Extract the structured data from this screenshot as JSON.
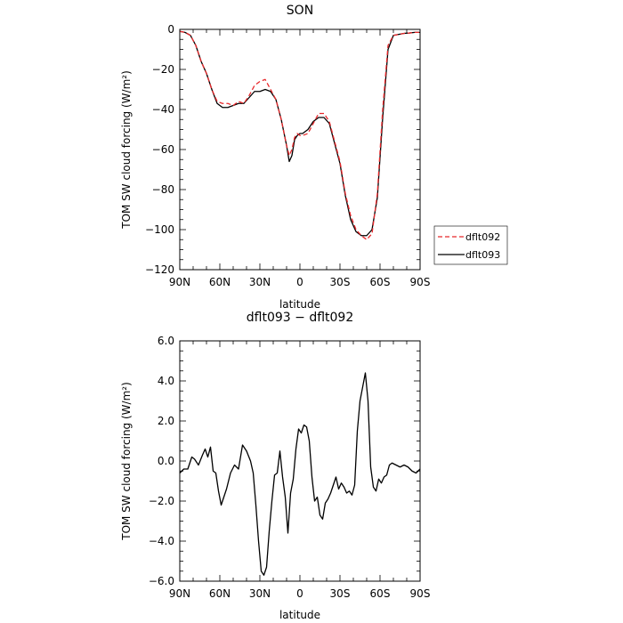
{
  "chart_data": [
    {
      "type": "line",
      "title": "SON",
      "xlabel": "latitude",
      "ylabel": "TOM SW cloud forcing (W/m²)",
      "xticks": [
        "90N",
        "60N",
        "30N",
        "0",
        "30S",
        "60S",
        "90S"
      ],
      "xlim": [
        -90,
        90
      ],
      "ylim": [
        -120,
        0
      ],
      "yticks": [
        "0",
        "−20",
        "−40",
        "−60",
        "−80",
        "−100",
        "−120"
      ],
      "ytick_values": [
        0,
        -20,
        -40,
        -60,
        -80,
        -100,
        -120
      ],
      "legend_position": "outside-right",
      "series": [
        {
          "name": "dflt092",
          "color": "#e8282b",
          "dash": "dashed",
          "x": [
            -90,
            -86,
            -82,
            -78,
            -74,
            -70,
            -66,
            -62,
            -58,
            -54,
            -50,
            -46,
            -42,
            -38,
            -34,
            -30,
            -26,
            -22,
            -18,
            -14,
            -10,
            -8,
            -6,
            -4,
            -2,
            0,
            2,
            6,
            10,
            14,
            18,
            22,
            26,
            30,
            34,
            38,
            42,
            46,
            50,
            54,
            58,
            62,
            66,
            70,
            74,
            78,
            82,
            86,
            90
          ],
          "y": [
            -1,
            -1.5,
            -3,
            -8,
            -16,
            -22,
            -30,
            -36,
            -37,
            -37,
            -38,
            -36,
            -37,
            -33,
            -28,
            -26,
            -25,
            -30,
            -35,
            -45,
            -58,
            -63,
            -60,
            -54,
            -52,
            -53,
            -53,
            -52,
            -47,
            -42,
            -42,
            -46,
            -56,
            -66,
            -82,
            -93,
            -100,
            -103,
            -105,
            -102,
            -82,
            -40,
            -8,
            -3,
            -2.5,
            -2,
            -1.8,
            -1.5,
            -1.5
          ]
        },
        {
          "name": "dflt093",
          "color": "#000000",
          "dash": "solid",
          "x": [
            -90,
            -86,
            -82,
            -78,
            -74,
            -70,
            -66,
            -62,
            -58,
            -54,
            -50,
            -46,
            -42,
            -38,
            -34,
            -30,
            -26,
            -22,
            -18,
            -14,
            -10,
            -8,
            -6,
            -4,
            -2,
            0,
            2,
            6,
            10,
            14,
            18,
            22,
            26,
            30,
            34,
            38,
            42,
            46,
            50,
            54,
            58,
            62,
            66,
            70,
            74,
            78,
            82,
            86,
            90
          ],
          "y": [
            -1,
            -1.5,
            -3,
            -8,
            -16,
            -22,
            -30,
            -37,
            -39,
            -39,
            -38,
            -37,
            -37,
            -34,
            -31,
            -31,
            -30,
            -31,
            -35,
            -45,
            -58,
            -66,
            -63,
            -55,
            -53,
            -52,
            -52,
            -50,
            -46,
            -44,
            -44,
            -47,
            -57,
            -67,
            -83,
            -95,
            -101,
            -103,
            -103,
            -100,
            -84,
            -44,
            -10,
            -3,
            -2.5,
            -2,
            -1.8,
            -1.5,
            -1.5
          ]
        }
      ]
    },
    {
      "type": "line",
      "title": "dflt093 − dflt092",
      "xlabel": "latitude",
      "ylabel": "TOM SW cloud forcing (W/m²)",
      "xticks": [
        "90N",
        "60N",
        "30N",
        "0",
        "30S",
        "60S",
        "90S"
      ],
      "xlim": [
        -90,
        90
      ],
      "ylim": [
        -6,
        6
      ],
      "yticks": [
        "6.0",
        "4.0",
        "2.0",
        "0.0",
        "−2.0",
        "−4.0",
        "−6.0"
      ],
      "ytick_values": [
        6,
        4,
        2,
        0,
        -2,
        -4,
        -6
      ],
      "series": [
        {
          "color": "#000000",
          "dash": "solid",
          "x": [
            -90,
            -87,
            -84,
            -81,
            -79,
            -76,
            -73,
            -71,
            -69,
            -67,
            -65,
            -63,
            -61,
            -59,
            -57,
            -55,
            -52,
            -49,
            -46,
            -43,
            -40,
            -37,
            -35,
            -33,
            -31,
            -29,
            -27,
            -25,
            -23,
            -21,
            -19,
            -17,
            -15,
            -13,
            -11,
            -9,
            -7,
            -5,
            -3,
            -1,
            1,
            3,
            5,
            7,
            9,
            11,
            13,
            15,
            17,
            19,
            21,
            23,
            25,
            27,
            29,
            31,
            33,
            35,
            37,
            39,
            41,
            43,
            45,
            47,
            49,
            51,
            53,
            55,
            57,
            59,
            61,
            63,
            65,
            67,
            69,
            72,
            75,
            78,
            81,
            84,
            87,
            90
          ],
          "y": [
            -0.6,
            -0.4,
            -0.4,
            0.2,
            0.1,
            -0.2,
            0.3,
            0.6,
            0.2,
            0.7,
            -0.5,
            -0.6,
            -1.5,
            -2.2,
            -1.8,
            -1.4,
            -0.6,
            -0.2,
            -0.4,
            0.8,
            0.5,
            0.0,
            -0.6,
            -2.2,
            -4.0,
            -5.5,
            -5.7,
            -5.3,
            -3.5,
            -2.0,
            -0.7,
            -0.6,
            0.5,
            -0.8,
            -1.8,
            -3.6,
            -1.6,
            -0.9,
            0.6,
            1.6,
            1.4,
            1.8,
            1.7,
            1.0,
            -0.8,
            -2.0,
            -1.8,
            -2.7,
            -2.9,
            -2.1,
            -1.9,
            -1.6,
            -1.2,
            -0.8,
            -1.4,
            -1.1,
            -1.3,
            -1.6,
            -1.5,
            -1.7,
            -1.2,
            1.5,
            3.0,
            3.7,
            4.4,
            3.0,
            -0.3,
            -1.3,
            -1.5,
            -0.9,
            -1.1,
            -0.8,
            -0.7,
            -0.2,
            -0.1,
            -0.2,
            -0.3,
            -0.2,
            -0.3,
            -0.5,
            -0.6,
            -0.4
          ]
        }
      ]
    }
  ]
}
